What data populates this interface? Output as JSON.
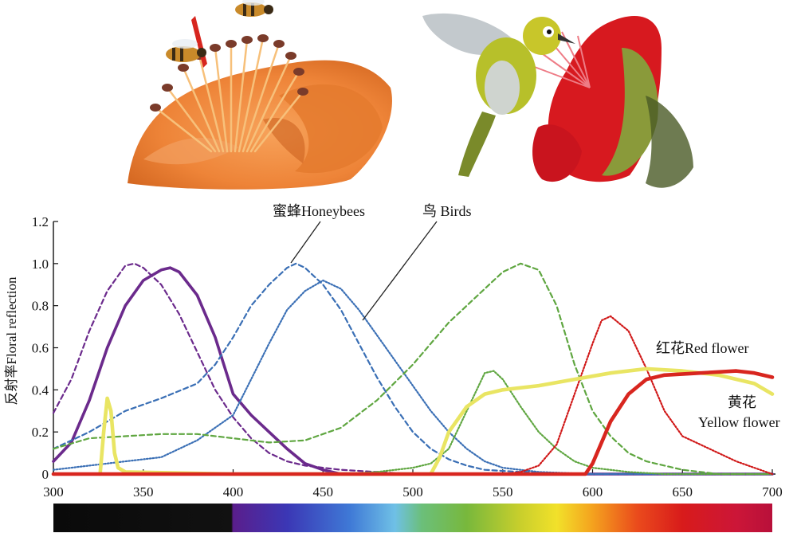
{
  "chart_data": {
    "type": "line",
    "xlim": [
      300,
      700
    ],
    "ylim": [
      0,
      1.2
    ],
    "x_ticks": [
      "300",
      "350",
      "400",
      "450",
      "500",
      "550",
      "600",
      "650",
      "700"
    ],
    "y_ticks": [
      "0",
      "0.2",
      "0.4",
      "0.6",
      "0.8",
      "1.0",
      "1.2"
    ],
    "ylabel": "反射率Floral reflection",
    "annotations": {
      "honeybees": "蜜蜂Honeybees",
      "birds": "鸟 Birds",
      "red_flower_zh": "红花",
      "red_flower_en": "Red flower",
      "yellow_flower_zh": "黄花",
      "yellow_flower_en": "Yellow flower"
    },
    "colors": {
      "uv": "#6b2a8c",
      "blue": "#3a6fb5",
      "green": "#5fa640",
      "red_receptor": "#d01818",
      "yellow_flower": "#e9e563",
      "red_flower": "#d8261f"
    },
    "series": [
      {
        "group": "honeybees",
        "style": "dashed",
        "color": "uv",
        "points": [
          [
            300,
            0.29
          ],
          [
            310,
            0.45
          ],
          [
            320,
            0.68
          ],
          [
            330,
            0.87
          ],
          [
            340,
            0.99
          ],
          [
            345,
            1.0
          ],
          [
            350,
            0.98
          ],
          [
            360,
            0.9
          ],
          [
            370,
            0.76
          ],
          [
            380,
            0.58
          ],
          [
            390,
            0.4
          ],
          [
            400,
            0.27
          ],
          [
            410,
            0.17
          ],
          [
            420,
            0.1
          ],
          [
            430,
            0.06
          ],
          [
            440,
            0.04
          ],
          [
            450,
            0.03
          ],
          [
            460,
            0.02
          ],
          [
            480,
            0.01
          ],
          [
            500,
            0.0
          ],
          [
            700,
            0.0
          ]
        ]
      },
      {
        "group": "birds",
        "style": "solid",
        "color": "uv",
        "points": [
          [
            300,
            0.06
          ],
          [
            310,
            0.15
          ],
          [
            320,
            0.35
          ],
          [
            330,
            0.6
          ],
          [
            340,
            0.8
          ],
          [
            350,
            0.92
          ],
          [
            360,
            0.97
          ],
          [
            365,
            0.98
          ],
          [
            370,
            0.96
          ],
          [
            380,
            0.85
          ],
          [
            390,
            0.65
          ],
          [
            400,
            0.38
          ],
          [
            410,
            0.28
          ],
          [
            420,
            0.2
          ],
          [
            430,
            0.12
          ],
          [
            440,
            0.05
          ],
          [
            450,
            0.02
          ],
          [
            460,
            0.0
          ],
          [
            700,
            0.0
          ]
        ]
      },
      {
        "group": "honeybees",
        "style": "dashed",
        "color": "blue",
        "points": [
          [
            300,
            0.12
          ],
          [
            320,
            0.2
          ],
          [
            340,
            0.3
          ],
          [
            360,
            0.36
          ],
          [
            380,
            0.43
          ],
          [
            390,
            0.52
          ],
          [
            400,
            0.65
          ],
          [
            410,
            0.8
          ],
          [
            420,
            0.9
          ],
          [
            430,
            0.98
          ],
          [
            435,
            1.0
          ],
          [
            440,
            0.98
          ],
          [
            450,
            0.9
          ],
          [
            460,
            0.78
          ],
          [
            470,
            0.62
          ],
          [
            480,
            0.46
          ],
          [
            490,
            0.32
          ],
          [
            500,
            0.2
          ],
          [
            510,
            0.12
          ],
          [
            520,
            0.07
          ],
          [
            530,
            0.04
          ],
          [
            540,
            0.02
          ],
          [
            560,
            0.01
          ],
          [
            600,
            0.0
          ],
          [
            700,
            0.0
          ]
        ]
      },
      {
        "group": "birds",
        "style": "dotted",
        "color": "blue",
        "points": [
          [
            300,
            0.02
          ],
          [
            320,
            0.04
          ],
          [
            340,
            0.06
          ],
          [
            360,
            0.08
          ],
          [
            380,
            0.16
          ],
          [
            400,
            0.28
          ],
          [
            410,
            0.45
          ],
          [
            420,
            0.62
          ],
          [
            430,
            0.78
          ],
          [
            440,
            0.87
          ],
          [
            450,
            0.92
          ],
          [
            460,
            0.88
          ],
          [
            470,
            0.78
          ],
          [
            480,
            0.66
          ],
          [
            490,
            0.54
          ],
          [
            500,
            0.42
          ],
          [
            510,
            0.3
          ],
          [
            520,
            0.2
          ],
          [
            530,
            0.12
          ],
          [
            540,
            0.06
          ],
          [
            550,
            0.03
          ],
          [
            570,
            0.01
          ],
          [
            600,
            0.0
          ],
          [
            700,
            0.0
          ]
        ]
      },
      {
        "group": "honeybees",
        "style": "dashed",
        "color": "green",
        "points": [
          [
            300,
            0.12
          ],
          [
            320,
            0.17
          ],
          [
            340,
            0.18
          ],
          [
            360,
            0.19
          ],
          [
            380,
            0.19
          ],
          [
            400,
            0.17
          ],
          [
            420,
            0.15
          ],
          [
            440,
            0.16
          ],
          [
            460,
            0.22
          ],
          [
            480,
            0.35
          ],
          [
            500,
            0.52
          ],
          [
            520,
            0.72
          ],
          [
            540,
            0.88
          ],
          [
            550,
            0.96
          ],
          [
            560,
            1.0
          ],
          [
            570,
            0.97
          ],
          [
            580,
            0.8
          ],
          [
            590,
            0.52
          ],
          [
            600,
            0.3
          ],
          [
            610,
            0.18
          ],
          [
            620,
            0.1
          ],
          [
            630,
            0.06
          ],
          [
            650,
            0.02
          ],
          [
            670,
            0.0
          ],
          [
            700,
            0.0
          ]
        ]
      },
      {
        "group": "birds",
        "style": "dotted",
        "color": "green",
        "points": [
          [
            460,
            0.0
          ],
          [
            480,
            0.01
          ],
          [
            500,
            0.03
          ],
          [
            510,
            0.05
          ],
          [
            520,
            0.12
          ],
          [
            530,
            0.3
          ],
          [
            540,
            0.48
          ],
          [
            545,
            0.49
          ],
          [
            550,
            0.45
          ],
          [
            560,
            0.32
          ],
          [
            570,
            0.2
          ],
          [
            580,
            0.12
          ],
          [
            590,
            0.06
          ],
          [
            600,
            0.03
          ],
          [
            620,
            0.01
          ],
          [
            640,
            0.0
          ],
          [
            700,
            0.0
          ]
        ]
      },
      {
        "group": "birds",
        "style": "dotted",
        "color": "red_receptor",
        "points": [
          [
            530,
            0.0
          ],
          [
            550,
            0.0
          ],
          [
            560,
            0.01
          ],
          [
            570,
            0.04
          ],
          [
            580,
            0.14
          ],
          [
            590,
            0.38
          ],
          [
            600,
            0.62
          ],
          [
            605,
            0.73
          ],
          [
            610,
            0.75
          ],
          [
            620,
            0.68
          ],
          [
            630,
            0.5
          ],
          [
            640,
            0.3
          ],
          [
            650,
            0.18
          ],
          [
            660,
            0.14
          ],
          [
            670,
            0.1
          ],
          [
            680,
            0.06
          ],
          [
            690,
            0.03
          ],
          [
            700,
            0.0
          ]
        ]
      },
      {
        "group": "yellow_flower",
        "style": "solid-thick",
        "color": "yellow_flower",
        "points": [
          [
            326,
            0.0
          ],
          [
            328,
            0.2
          ],
          [
            330,
            0.36
          ],
          [
            332,
            0.3
          ],
          [
            334,
            0.1
          ],
          [
            336,
            0.03
          ],
          [
            340,
            0.01
          ],
          [
            400,
            0.0
          ],
          [
            510,
            0.0
          ],
          [
            515,
            0.08
          ],
          [
            520,
            0.2
          ],
          [
            530,
            0.32
          ],
          [
            540,
            0.38
          ],
          [
            550,
            0.4
          ],
          [
            570,
            0.42
          ],
          [
            590,
            0.45
          ],
          [
            610,
            0.48
          ],
          [
            630,
            0.5
          ],
          [
            650,
            0.49
          ],
          [
            670,
            0.47
          ],
          [
            690,
            0.43
          ],
          [
            700,
            0.38
          ]
        ]
      },
      {
        "group": "red_flower",
        "style": "solid-thick",
        "color": "red_flower",
        "points": [
          [
            300,
            0.0
          ],
          [
            596,
            0.0
          ],
          [
            600,
            0.05
          ],
          [
            610,
            0.25
          ],
          [
            620,
            0.38
          ],
          [
            630,
            0.45
          ],
          [
            640,
            0.47
          ],
          [
            660,
            0.48
          ],
          [
            680,
            0.49
          ],
          [
            690,
            0.48
          ],
          [
            700,
            0.46
          ]
        ]
      }
    ]
  },
  "spectrum_bar": {
    "start_nm": 300,
    "end_nm": 700,
    "stops": [
      {
        "nm": 300,
        "color": "#0a0a0a"
      },
      {
        "nm": 399,
        "color": "#111111"
      },
      {
        "nm": 400,
        "color": "#5a1e8c"
      },
      {
        "nm": 430,
        "color": "#3b37b5"
      },
      {
        "nm": 465,
        "color": "#3f79d6"
      },
      {
        "nm": 490,
        "color": "#6fc0e6"
      },
      {
        "nm": 505,
        "color": "#6bbf7a"
      },
      {
        "nm": 530,
        "color": "#78b83c"
      },
      {
        "nm": 560,
        "color": "#c9cf2c"
      },
      {
        "nm": 580,
        "color": "#f2e12a"
      },
      {
        "nm": 600,
        "color": "#f4a21e"
      },
      {
        "nm": 625,
        "color": "#ea4a1c"
      },
      {
        "nm": 650,
        "color": "#d81b1b"
      },
      {
        "nm": 680,
        "color": "#cc1638"
      },
      {
        "nm": 700,
        "color": "#b8103a"
      }
    ]
  }
}
